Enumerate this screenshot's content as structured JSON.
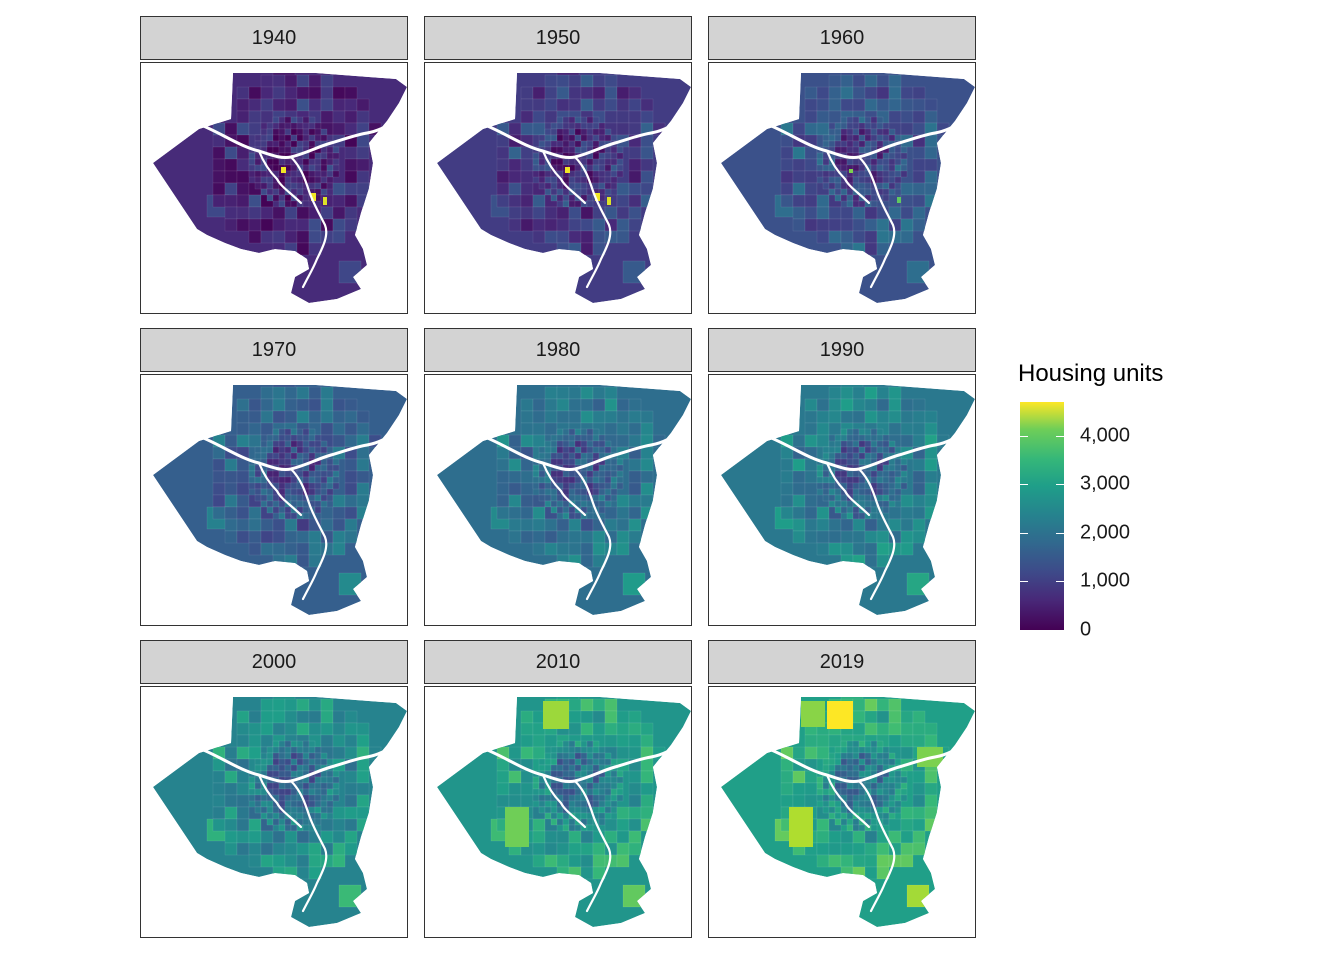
{
  "chart_data": {
    "type": "choropleth",
    "facets": [
      "1940",
      "1950",
      "1960",
      "1970",
      "1980",
      "1990",
      "2000",
      "2010",
      "2019"
    ],
    "facet_mean_level": {
      "1940": 0.12,
      "1950": 0.18,
      "1960": 0.25,
      "1970": 0.3,
      "1980": 0.36,
      "1990": 0.4,
      "2000": 0.45,
      "2010": 0.52,
      "2019": 0.56
    },
    "legend": {
      "title": "Housing units",
      "min": 0,
      "max": 4700,
      "ticks": [
        0,
        1000,
        2000,
        3000,
        4000
      ],
      "tick_labels": [
        "0",
        "1,000",
        "2,000",
        "3,000",
        "4,000"
      ],
      "colormap": "viridis",
      "colors": [
        "#440154",
        "#3b528b",
        "#21908c",
        "#5dc863",
        "#fde725"
      ]
    },
    "river_color": "#ffffff",
    "strip_fill": "#d3d3d3"
  }
}
